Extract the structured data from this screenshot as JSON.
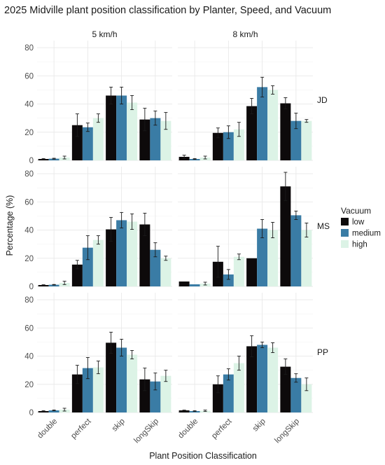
{
  "chart_data": {
    "type": "bar",
    "title": "2025 Midville plant position classification by Planter, Speed, and Vacuum",
    "xlabel": "Plant Position Classification",
    "ylabel": "Percentage (%)",
    "ylim": [
      0,
      85
    ],
    "y_ticks": [
      0,
      20,
      40,
      60,
      80
    ],
    "grid": true,
    "categories": [
      "double",
      "perfect",
      "skip",
      "longSkip"
    ],
    "col_facets": [
      "5 km/h",
      "8 km/h"
    ],
    "row_facets": [
      "JD",
      "MS",
      "PP"
    ],
    "legend": {
      "title": "Vacuum",
      "position": "right",
      "entries": [
        {
          "name": "low",
          "color": "#0d0a0b"
        },
        {
          "name": "medium",
          "color": "#3a7ca5"
        },
        {
          "name": "high",
          "color": "#dcf3e6"
        }
      ]
    },
    "panels": [
      {
        "row": "JD",
        "col": "5 km/h",
        "series": [
          {
            "name": "low",
            "values": [
              1,
              25,
              46,
              29
            ],
            "errors": [
              0.3,
              8,
              6,
              8
            ]
          },
          {
            "name": "medium",
            "values": [
              1.2,
              23.5,
              46,
              30
            ],
            "errors": [
              0.3,
              3,
              6,
              5
            ]
          },
          {
            "name": "high",
            "values": [
              2,
              30,
              41,
              28
            ],
            "errors": [
              1,
              3,
              5,
              6
            ]
          }
        ]
      },
      {
        "row": "JD",
        "col": "8 km/h",
        "series": [
          {
            "name": "low",
            "values": [
              2.5,
              19.5,
              38.5,
              40.5
            ],
            "errors": [
              1.2,
              3.5,
              5.5,
              4
            ]
          },
          {
            "name": "medium",
            "values": [
              1,
              20,
              52,
              28
            ],
            "errors": [
              0.3,
              4.5,
              7,
              5.5
            ]
          },
          {
            "name": "high",
            "values": [
              2,
              22,
              50,
              28
            ],
            "errors": [
              1,
              5,
              3,
              1
            ]
          }
        ]
      },
      {
        "row": "MS",
        "col": "5 km/h",
        "series": [
          {
            "name": "low",
            "values": [
              1,
              15.5,
              40.5,
              44
            ],
            "errors": [
              0.2,
              3,
              8.5,
              8
            ]
          },
          {
            "name": "medium",
            "values": [
              1.2,
              27.5,
              47,
              26
            ],
            "errors": [
              0.2,
              8.5,
              5.5,
              5
            ]
          },
          {
            "name": "high",
            "values": [
              2.5,
              33,
              46,
              20
            ],
            "errors": [
              1.2,
              3,
              5.5,
              1.5
            ]
          }
        ]
      },
      {
        "row": "MS",
        "col": "8 km/h",
        "series": [
          {
            "name": "low",
            "values": [
              3.5,
              17.5,
              20,
              71
            ],
            "errors": [
              0,
              11,
              0,
              10
            ]
          },
          {
            "name": "medium",
            "values": [
              1.5,
              8.5,
              41,
              50.5
            ],
            "errors": [
              0,
              3.5,
              6.5,
              3
            ]
          },
          {
            "name": "high",
            "values": [
              2,
              21,
              40,
              40
            ],
            "errors": [
              1,
              2,
              5.5,
              5
            ]
          }
        ]
      },
      {
        "row": "PP",
        "col": "5 km/h",
        "series": [
          {
            "name": "low",
            "values": [
              1,
              27,
              49.5,
              23.5
            ],
            "errors": [
              0.3,
              6.5,
              7.5,
              8
            ]
          },
          {
            "name": "medium",
            "values": [
              1.5,
              31.5,
              46,
              22
            ],
            "errors": [
              0.3,
              7.5,
              6,
              6
            ]
          },
          {
            "name": "high",
            "values": [
              2,
              32,
              41,
              26
            ],
            "errors": [
              1,
              4.5,
              3,
              4
            ]
          }
        ]
      },
      {
        "row": "PP",
        "col": "8 km/h",
        "series": [
          {
            "name": "low",
            "values": [
              1.5,
              20,
              47,
              32.5
            ],
            "errors": [
              0.2,
              6,
              7.5,
              5.5
            ]
          },
          {
            "name": "medium",
            "values": [
              1,
              27,
              48,
              24.5
            ],
            "errors": [
              0.3,
              4,
              2,
              3
            ]
          },
          {
            "name": "high",
            "values": [
              1.2,
              35,
              46,
              20
            ],
            "errors": [
              0.5,
              5,
              3.5,
              4.5
            ]
          }
        ]
      }
    ]
  }
}
